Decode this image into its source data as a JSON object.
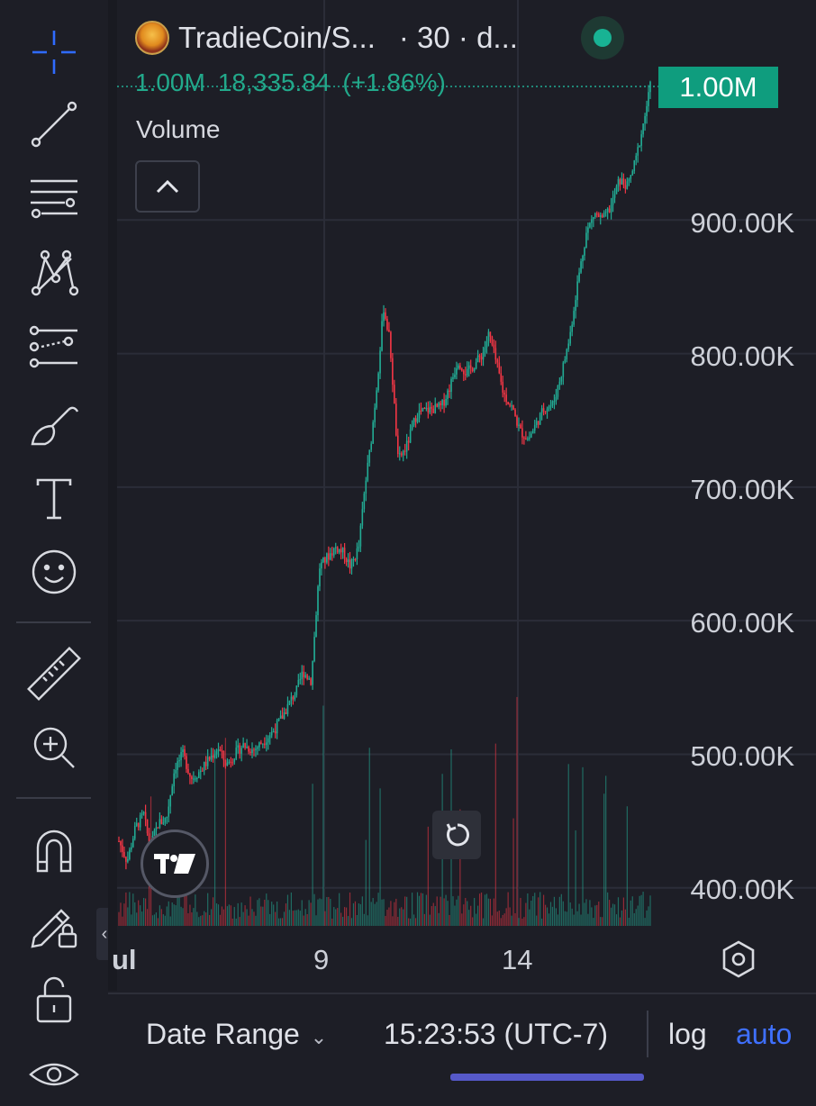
{
  "header": {
    "symbol": "TradieCoin/S...",
    "interval": "· 30 · d...",
    "last_volume": "1.00M",
    "last_price": "18,335.84",
    "change_pct": "(+1.86%)"
  },
  "volume_indicator": {
    "label": "Volume"
  },
  "price_badge": "1.00M",
  "y_axis": {
    "ticks": [
      "900.00K",
      "800.00K",
      "700.00K",
      "600.00K",
      "500.00K",
      "400.00K"
    ]
  },
  "x_axis": {
    "ticks": [
      "ul",
      "9",
      "14"
    ]
  },
  "bottom_bar": {
    "date_range_label": "Date Range",
    "time": "15:23:53 (UTC-7)",
    "log_label": "log",
    "auto_label": "auto"
  },
  "toolbar": {
    "tools": [
      "crosshair-icon",
      "trend-line-icon",
      "fib-retracement-icon",
      "pattern-icon",
      "prediction-icon",
      "brush-icon",
      "text-icon",
      "emoji-icon",
      "ruler-icon",
      "zoom-in-icon",
      "magnet-icon",
      "lock-drawing-icon",
      "unlock-icon",
      "eye-icon"
    ]
  },
  "colors": {
    "up": "#22ab94",
    "down": "#f23645",
    "accent": "#3f70ff",
    "badge": "#0f9d7e",
    "background": "#1d1e26"
  },
  "chart_data": {
    "type": "candlestick",
    "series": [
      {
        "name": "price",
        "values": [
          [
            0,
            435
          ],
          [
            8,
            420
          ],
          [
            16,
            445
          ],
          [
            24,
            455
          ],
          [
            30,
            430
          ],
          [
            38,
            448
          ],
          [
            46,
            452
          ],
          [
            54,
            490
          ],
          [
            62,
            500
          ],
          [
            70,
            482
          ],
          [
            78,
            487
          ],
          [
            86,
            495
          ],
          [
            96,
            505
          ],
          [
            104,
            492
          ],
          [
            112,
            500
          ],
          [
            120,
            507
          ],
          [
            130,
            503
          ],
          [
            140,
            510
          ],
          [
            150,
            518
          ],
          [
            158,
            528
          ],
          [
            166,
            540
          ],
          [
            172,
            548
          ],
          [
            178,
            562
          ],
          [
            186,
            555
          ],
          [
            194,
            640
          ],
          [
            202,
            648
          ],
          [
            210,
            655
          ],
          [
            218,
            650
          ],
          [
            224,
            640
          ],
          [
            232,
            655
          ],
          [
            238,
            700
          ],
          [
            244,
            735
          ],
          [
            250,
            780
          ],
          [
            256,
            835
          ],
          [
            262,
            810
          ],
          [
            270,
            720
          ],
          [
            278,
            730
          ],
          [
            288,
            755
          ],
          [
            300,
            758
          ],
          [
            312,
            760
          ],
          [
            320,
            775
          ],
          [
            328,
            795
          ],
          [
            336,
            785
          ],
          [
            344,
            792
          ],
          [
            352,
            800
          ],
          [
            358,
            815
          ],
          [
            366,
            790
          ],
          [
            372,
            770
          ],
          [
            380,
            760
          ],
          [
            388,
            742
          ],
          [
            396,
            736
          ],
          [
            404,
            748
          ],
          [
            412,
            760
          ],
          [
            420,
            762
          ],
          [
            428,
            785
          ],
          [
            436,
            812
          ],
          [
            444,
            855
          ],
          [
            452,
            890
          ],
          [
            460,
            905
          ],
          [
            468,
            900
          ],
          [
            476,
            910
          ],
          [
            484,
            930
          ],
          [
            492,
            925
          ],
          [
            500,
            945
          ],
          [
            508,
            975
          ],
          [
            514,
            1000
          ]
        ]
      }
    ],
    "volume_series": {
      "name": "Volume"
    },
    "y_range": [
      380000,
      1000000
    ],
    "price_scale": "auto",
    "last_value": "1.00M"
  }
}
